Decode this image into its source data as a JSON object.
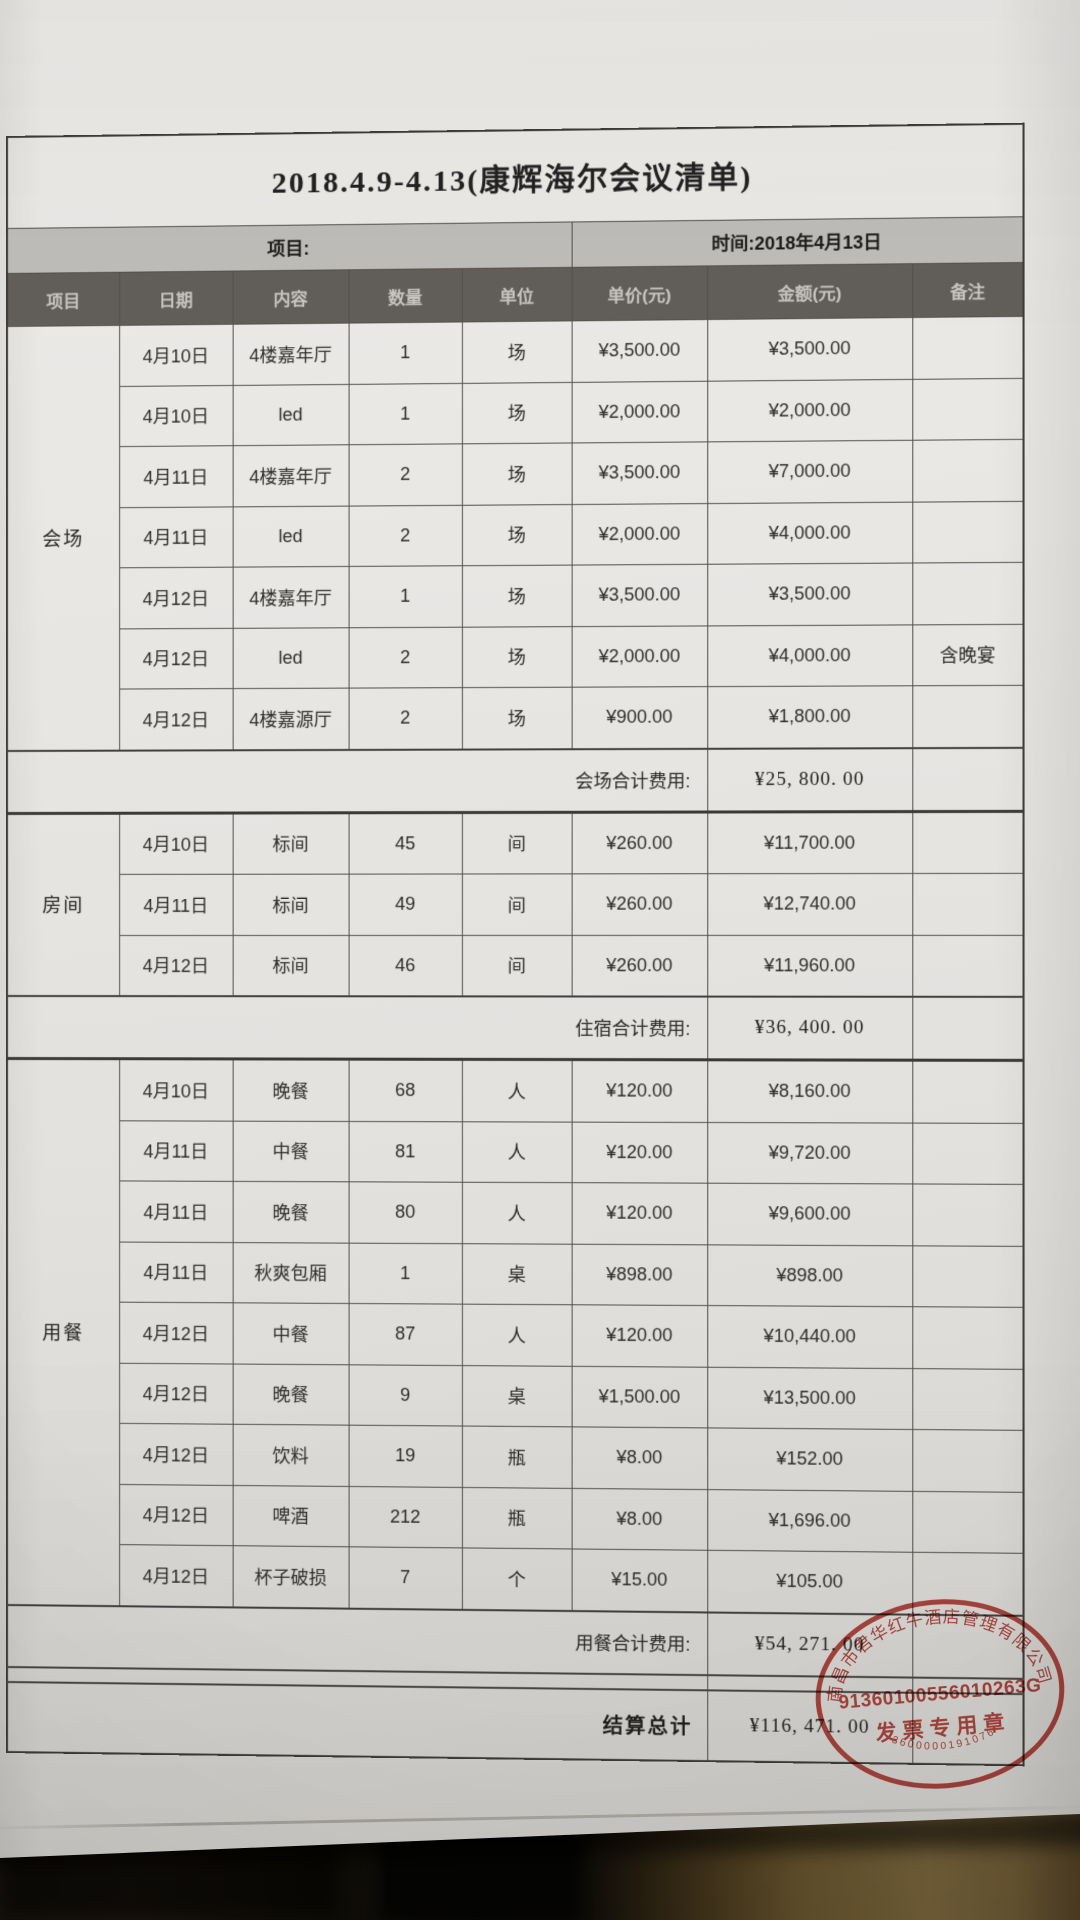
{
  "document": {
    "title": "2018.4.9-4.13(康辉海尔会议清单)",
    "project_label": "项目:",
    "time_label": "时间:2018年4月13日",
    "columns": [
      "项目",
      "日期",
      "内容",
      "数量",
      "单位",
      "单价(元)",
      "金额(元)",
      "备注"
    ],
    "groups": [
      {
        "name": "会场",
        "rows": [
          [
            "4月10日",
            "4楼嘉年厅",
            "1",
            "场",
            "¥3,500.00",
            "¥3,500.00",
            ""
          ],
          [
            "4月10日",
            "led",
            "1",
            "场",
            "¥2,000.00",
            "¥2,000.00",
            ""
          ],
          [
            "4月11日",
            "4楼嘉年厅",
            "2",
            "场",
            "¥3,500.00",
            "¥7,000.00",
            ""
          ],
          [
            "4月11日",
            "led",
            "2",
            "场",
            "¥2,000.00",
            "¥4,000.00",
            ""
          ],
          [
            "4月12日",
            "4楼嘉年厅",
            "1",
            "场",
            "¥3,500.00",
            "¥3,500.00",
            ""
          ],
          [
            "4月12日",
            "led",
            "2",
            "场",
            "¥2,000.00",
            "¥4,000.00",
            "含晚宴"
          ],
          [
            "4月12日",
            "4楼嘉源厅",
            "2",
            "场",
            "¥900.00",
            "¥1,800.00",
            ""
          ]
        ],
        "subtotal_label": "会场合计费用:",
        "subtotal_value": "¥25, 800. 00"
      },
      {
        "name": "房间",
        "rows": [
          [
            "4月10日",
            "标间",
            "45",
            "间",
            "¥260.00",
            "¥11,700.00",
            ""
          ],
          [
            "4月11日",
            "标间",
            "49",
            "间",
            "¥260.00",
            "¥12,740.00",
            ""
          ],
          [
            "4月12日",
            "标间",
            "46",
            "间",
            "¥260.00",
            "¥11,960.00",
            ""
          ]
        ],
        "subtotal_label": "住宿合计费用:",
        "subtotal_value": "¥36, 400. 00"
      },
      {
        "name": "用餐",
        "rows": [
          [
            "4月10日",
            "晚餐",
            "68",
            "人",
            "¥120.00",
            "¥8,160.00",
            ""
          ],
          [
            "4月11日",
            "中餐",
            "81",
            "人",
            "¥120.00",
            "¥9,720.00",
            ""
          ],
          [
            "4月11日",
            "晚餐",
            "80",
            "人",
            "¥120.00",
            "¥9,600.00",
            ""
          ],
          [
            "4月11日",
            "秋爽包厢",
            "1",
            "桌",
            "¥898.00",
            "¥898.00",
            ""
          ],
          [
            "4月12日",
            "中餐",
            "87",
            "人",
            "¥120.00",
            "¥10,440.00",
            ""
          ],
          [
            "4月12日",
            "晚餐",
            "9",
            "桌",
            "¥1,500.00",
            "¥13,500.00",
            ""
          ],
          [
            "4月12日",
            "饮料",
            "19",
            "瓶",
            "¥8.00",
            "¥152.00",
            ""
          ],
          [
            "4月12日",
            "啤酒",
            "212",
            "瓶",
            "¥8.00",
            "¥1,696.00",
            ""
          ],
          [
            "4月12日",
            "杯子破损",
            "7",
            "个",
            "¥15.00",
            "¥105.00",
            ""
          ]
        ],
        "subtotal_label": "用餐合计费用:",
        "subtotal_value": "¥54, 271. 00"
      }
    ],
    "total_label": "结算总计",
    "total_value": "¥116, 471. 00"
  },
  "stamp": {
    "company": "南昌市君华红牛酒店管理有限公司",
    "credit_code": "91360100556010263G",
    "seal_type": "发票专用章",
    "serial": "3600000191076",
    "color": "#bf4038"
  },
  "colors": {
    "paper": "#e7e5e2",
    "header_bg": "#625e5a",
    "info_bg": "#bfbdb9",
    "stamp_red": "#bf4038"
  }
}
